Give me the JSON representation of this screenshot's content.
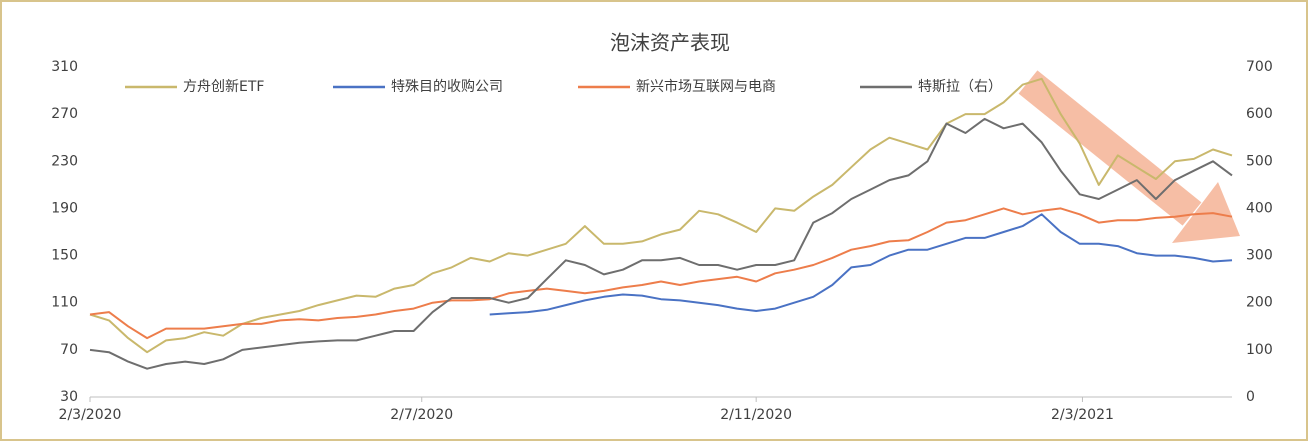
{
  "chart_data": {
    "type": "line",
    "title": "泡沫资产表现",
    "x": [
      "2020-03-02",
      "2020-03-09",
      "2020-03-16",
      "2020-03-23",
      "2020-03-30",
      "2020-04-06",
      "2020-04-13",
      "2020-04-20",
      "2020-04-27",
      "2020-05-04",
      "2020-05-11",
      "2020-05-18",
      "2020-05-25",
      "2020-06-01",
      "2020-06-08",
      "2020-06-15",
      "2020-06-22",
      "2020-06-29",
      "2020-07-06",
      "2020-07-13",
      "2020-07-20",
      "2020-07-27",
      "2020-08-03",
      "2020-08-10",
      "2020-08-17",
      "2020-08-24",
      "2020-08-31",
      "2020-09-07",
      "2020-09-14",
      "2020-09-21",
      "2020-09-28",
      "2020-10-05",
      "2020-10-12",
      "2020-10-19",
      "2020-10-26",
      "2020-11-02",
      "2020-11-09",
      "2020-11-16",
      "2020-11-23",
      "2020-11-30",
      "2020-12-07",
      "2020-12-14",
      "2020-12-21",
      "2020-12-28",
      "2021-01-04",
      "2021-01-11",
      "2021-01-18",
      "2021-01-25",
      "2021-02-01",
      "2021-02-08",
      "2021-02-15",
      "2021-02-22",
      "2021-03-01",
      "2021-03-08",
      "2021-03-15",
      "2021-03-22",
      "2021-03-29",
      "2021-04-05",
      "2021-04-12",
      "2021-04-19",
      "2021-04-26"
    ],
    "series": [
      {
        "name": "方舟创新ETF",
        "color": "#c9b86c",
        "values": [
          100,
          95,
          80,
          68,
          78,
          80,
          85,
          82,
          92,
          97,
          100,
          103,
          108,
          112,
          116,
          115,
          122,
          125,
          135,
          140,
          148,
          145,
          152,
          150,
          155,
          160,
          175,
          160,
          160,
          162,
          168,
          172,
          188,
          185,
          178,
          170,
          190,
          188,
          200,
          210,
          225,
          240,
          250,
          245,
          240,
          262,
          270,
          270,
          280,
          295,
          300,
          270,
          245,
          210,
          235,
          225,
          215,
          230,
          232,
          240,
          235
        ]
      },
      {
        "name": "特殊目的收购公司",
        "color": "#4a72c4",
        "values": [
          null,
          null,
          null,
          null,
          null,
          null,
          null,
          null,
          null,
          null,
          null,
          null,
          null,
          null,
          null,
          null,
          null,
          null,
          null,
          null,
          null,
          100,
          101,
          102,
          104,
          108,
          112,
          115,
          117,
          116,
          113,
          112,
          110,
          108,
          105,
          103,
          105,
          110,
          115,
          125,
          140,
          142,
          150,
          155,
          155,
          160,
          165,
          165,
          170,
          175,
          185,
          170,
          160,
          160,
          158,
          152,
          150,
          150,
          148,
          145,
          146
        ]
      },
      {
        "name": "新兴市场互联网与电商",
        "color": "#ed7d4b",
        "values": [
          100,
          102,
          90,
          80,
          88,
          88,
          88,
          90,
          92,
          92,
          95,
          96,
          95,
          97,
          98,
          100,
          103,
          105,
          110,
          112,
          112,
          113,
          118,
          120,
          122,
          120,
          118,
          120,
          123,
          125,
          128,
          125,
          128,
          130,
          132,
          128,
          135,
          138,
          142,
          148,
          155,
          158,
          162,
          163,
          170,
          178,
          180,
          185,
          190,
          185,
          188,
          190,
          185,
          178,
          180,
          180,
          182,
          183,
          185,
          186,
          183
        ]
      },
      {
        "name": "特斯拉（右）",
        "color": "#6e6e6e",
        "axis": "y2",
        "values": [
          100,
          95,
          75,
          60,
          70,
          75,
          70,
          80,
          100,
          105,
          110,
          115,
          118,
          120,
          120,
          130,
          140,
          140,
          180,
          210,
          210,
          210,
          200,
          210,
          250,
          290,
          280,
          260,
          270,
          290,
          290,
          295,
          280,
          280,
          270,
          280,
          280,
          290,
          370,
          390,
          420,
          440,
          460,
          470,
          500,
          580,
          560,
          590,
          570,
          580,
          540,
          480,
          430,
          420,
          440,
          460,
          420,
          460,
          480,
          500,
          470
        ]
      }
    ],
    "xlim": [
      "2020-03-02",
      "2021-04-26"
    ],
    "xticks": [
      {
        "value": "2020-03-02",
        "label": "2/3/2020"
      },
      {
        "value": "2020-07-02",
        "label": "2/7/2020"
      },
      {
        "value": "2020-11-02",
        "label": "2/11/2020"
      },
      {
        "value": "2021-03-02",
        "label": "2/3/2021"
      }
    ],
    "ylim": [
      30,
      310
    ],
    "yticks": [
      30,
      70,
      110,
      150,
      190,
      230,
      270,
      310
    ],
    "y2lim": [
      0,
      700
    ],
    "y2ticks": [
      0,
      100,
      200,
      300,
      400,
      500,
      600,
      700
    ],
    "grid": false,
    "legend": "top"
  }
}
